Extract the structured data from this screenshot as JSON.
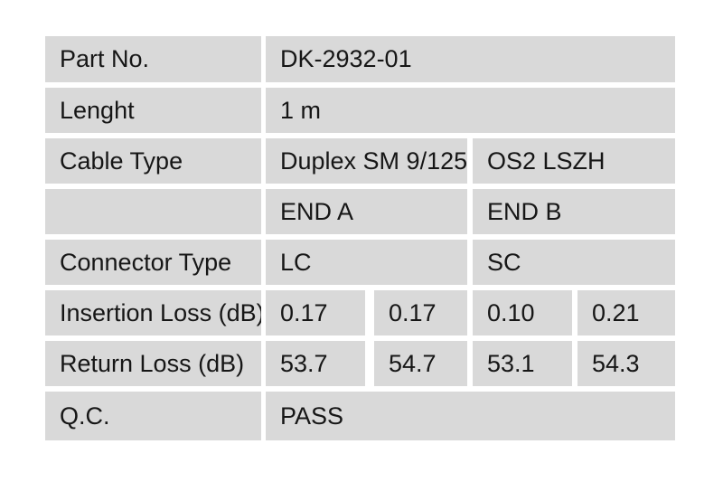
{
  "page": {
    "background_color": "#ffffff",
    "cell_background_color": "#d9d9d9",
    "text_color": "#161616"
  },
  "table": {
    "title": "Cable QC test report table",
    "rows": [
      {
        "label": "Part No.",
        "values": [
          "DK-2932-01"
        ]
      },
      {
        "label": "Lenght",
        "values": [
          "1 m"
        ]
      },
      {
        "label": "Cable Type",
        "values": [
          "Duplex SM 9/125",
          "OS2 LSZH"
        ]
      },
      {
        "label": "",
        "values": [
          "END A",
          "END B"
        ]
      },
      {
        "label": "Connector Type",
        "values": [
          "LC",
          "SC"
        ]
      },
      {
        "label": "Insertion Loss (dB)",
        "values": [
          "0.17",
          "0.17",
          "0.10",
          "0.21"
        ]
      },
      {
        "label": "Return Loss (dB)",
        "values": [
          "53.7",
          "54.7",
          "53.1",
          "54.3"
        ]
      },
      {
        "label": "Q.C.",
        "values": [
          "PASS"
        ]
      }
    ]
  }
}
